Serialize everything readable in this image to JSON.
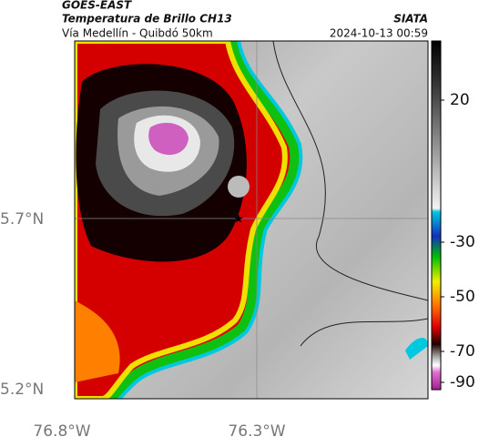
{
  "header": {
    "title": "GOES-EAST",
    "subtitle": "Temperatura de Brillo CH13",
    "route": "Vía Medellín - Quibdó 50km",
    "source": "SIATA",
    "timestamp": "2024-10-13 00:59"
  },
  "map": {
    "lat_labels": [
      "5.7°N",
      "5.2°N"
    ],
    "lon_labels": [
      "76.8°W",
      "76.3°W"
    ]
  },
  "colorbar": {
    "ticks": [
      20,
      -30,
      -50,
      -70,
      -90
    ]
  }
}
